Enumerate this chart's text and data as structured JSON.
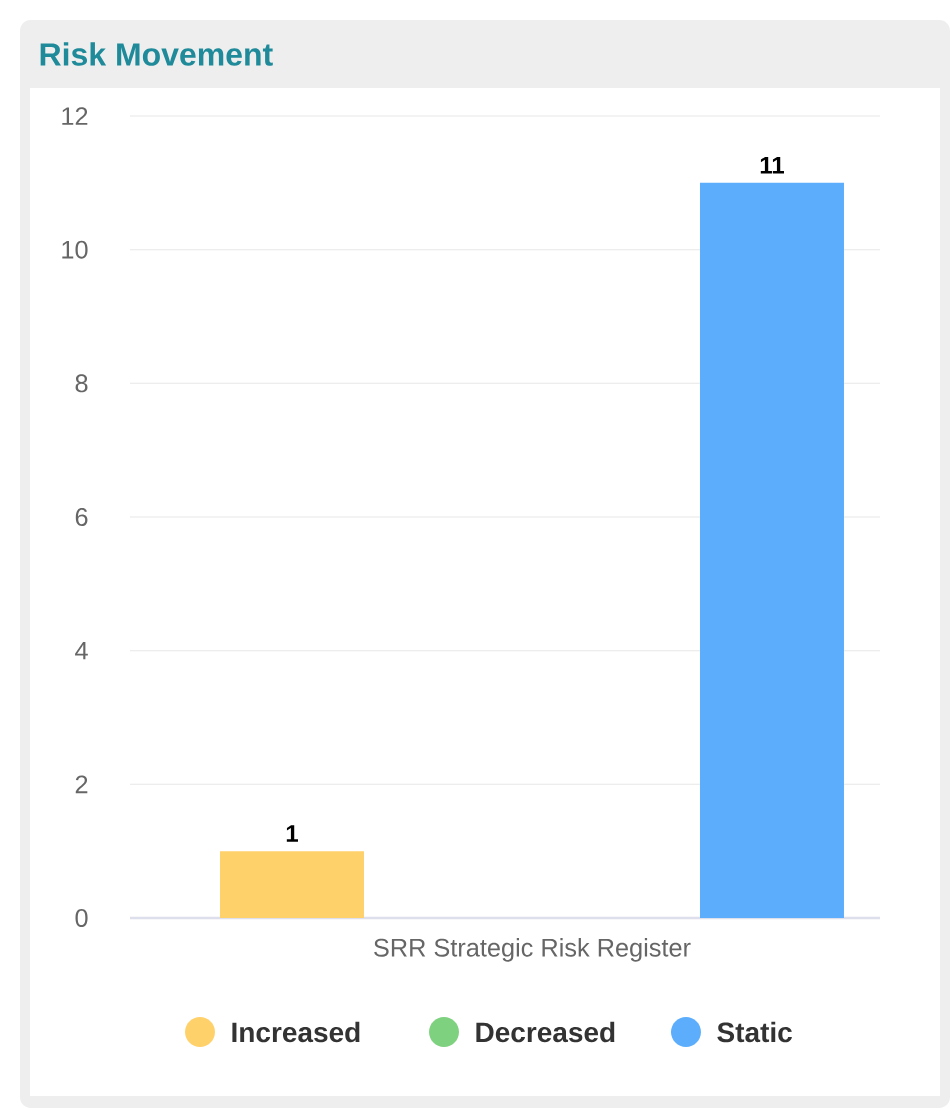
{
  "chart_data": {
    "type": "bar",
    "title": "Risk Movement",
    "categories": [
      "SRR Strategic Risk Register"
    ],
    "series": [
      {
        "name": "Increased",
        "color": "#ffd16b",
        "values": [
          1
        ],
        "value_labels": [
          "1"
        ]
      },
      {
        "name": "Decreased",
        "color": "#7ed17e",
        "values": [
          0
        ],
        "value_labels": [
          null
        ]
      },
      {
        "name": "Static",
        "color": "#5caefd",
        "values": [
          11
        ],
        "value_labels": [
          "11"
        ]
      }
    ],
    "ylim": [
      0,
      12
    ],
    "yticks": [
      0,
      2,
      4,
      6,
      8,
      10,
      12
    ],
    "grid": "y",
    "legend": "bottom"
  }
}
